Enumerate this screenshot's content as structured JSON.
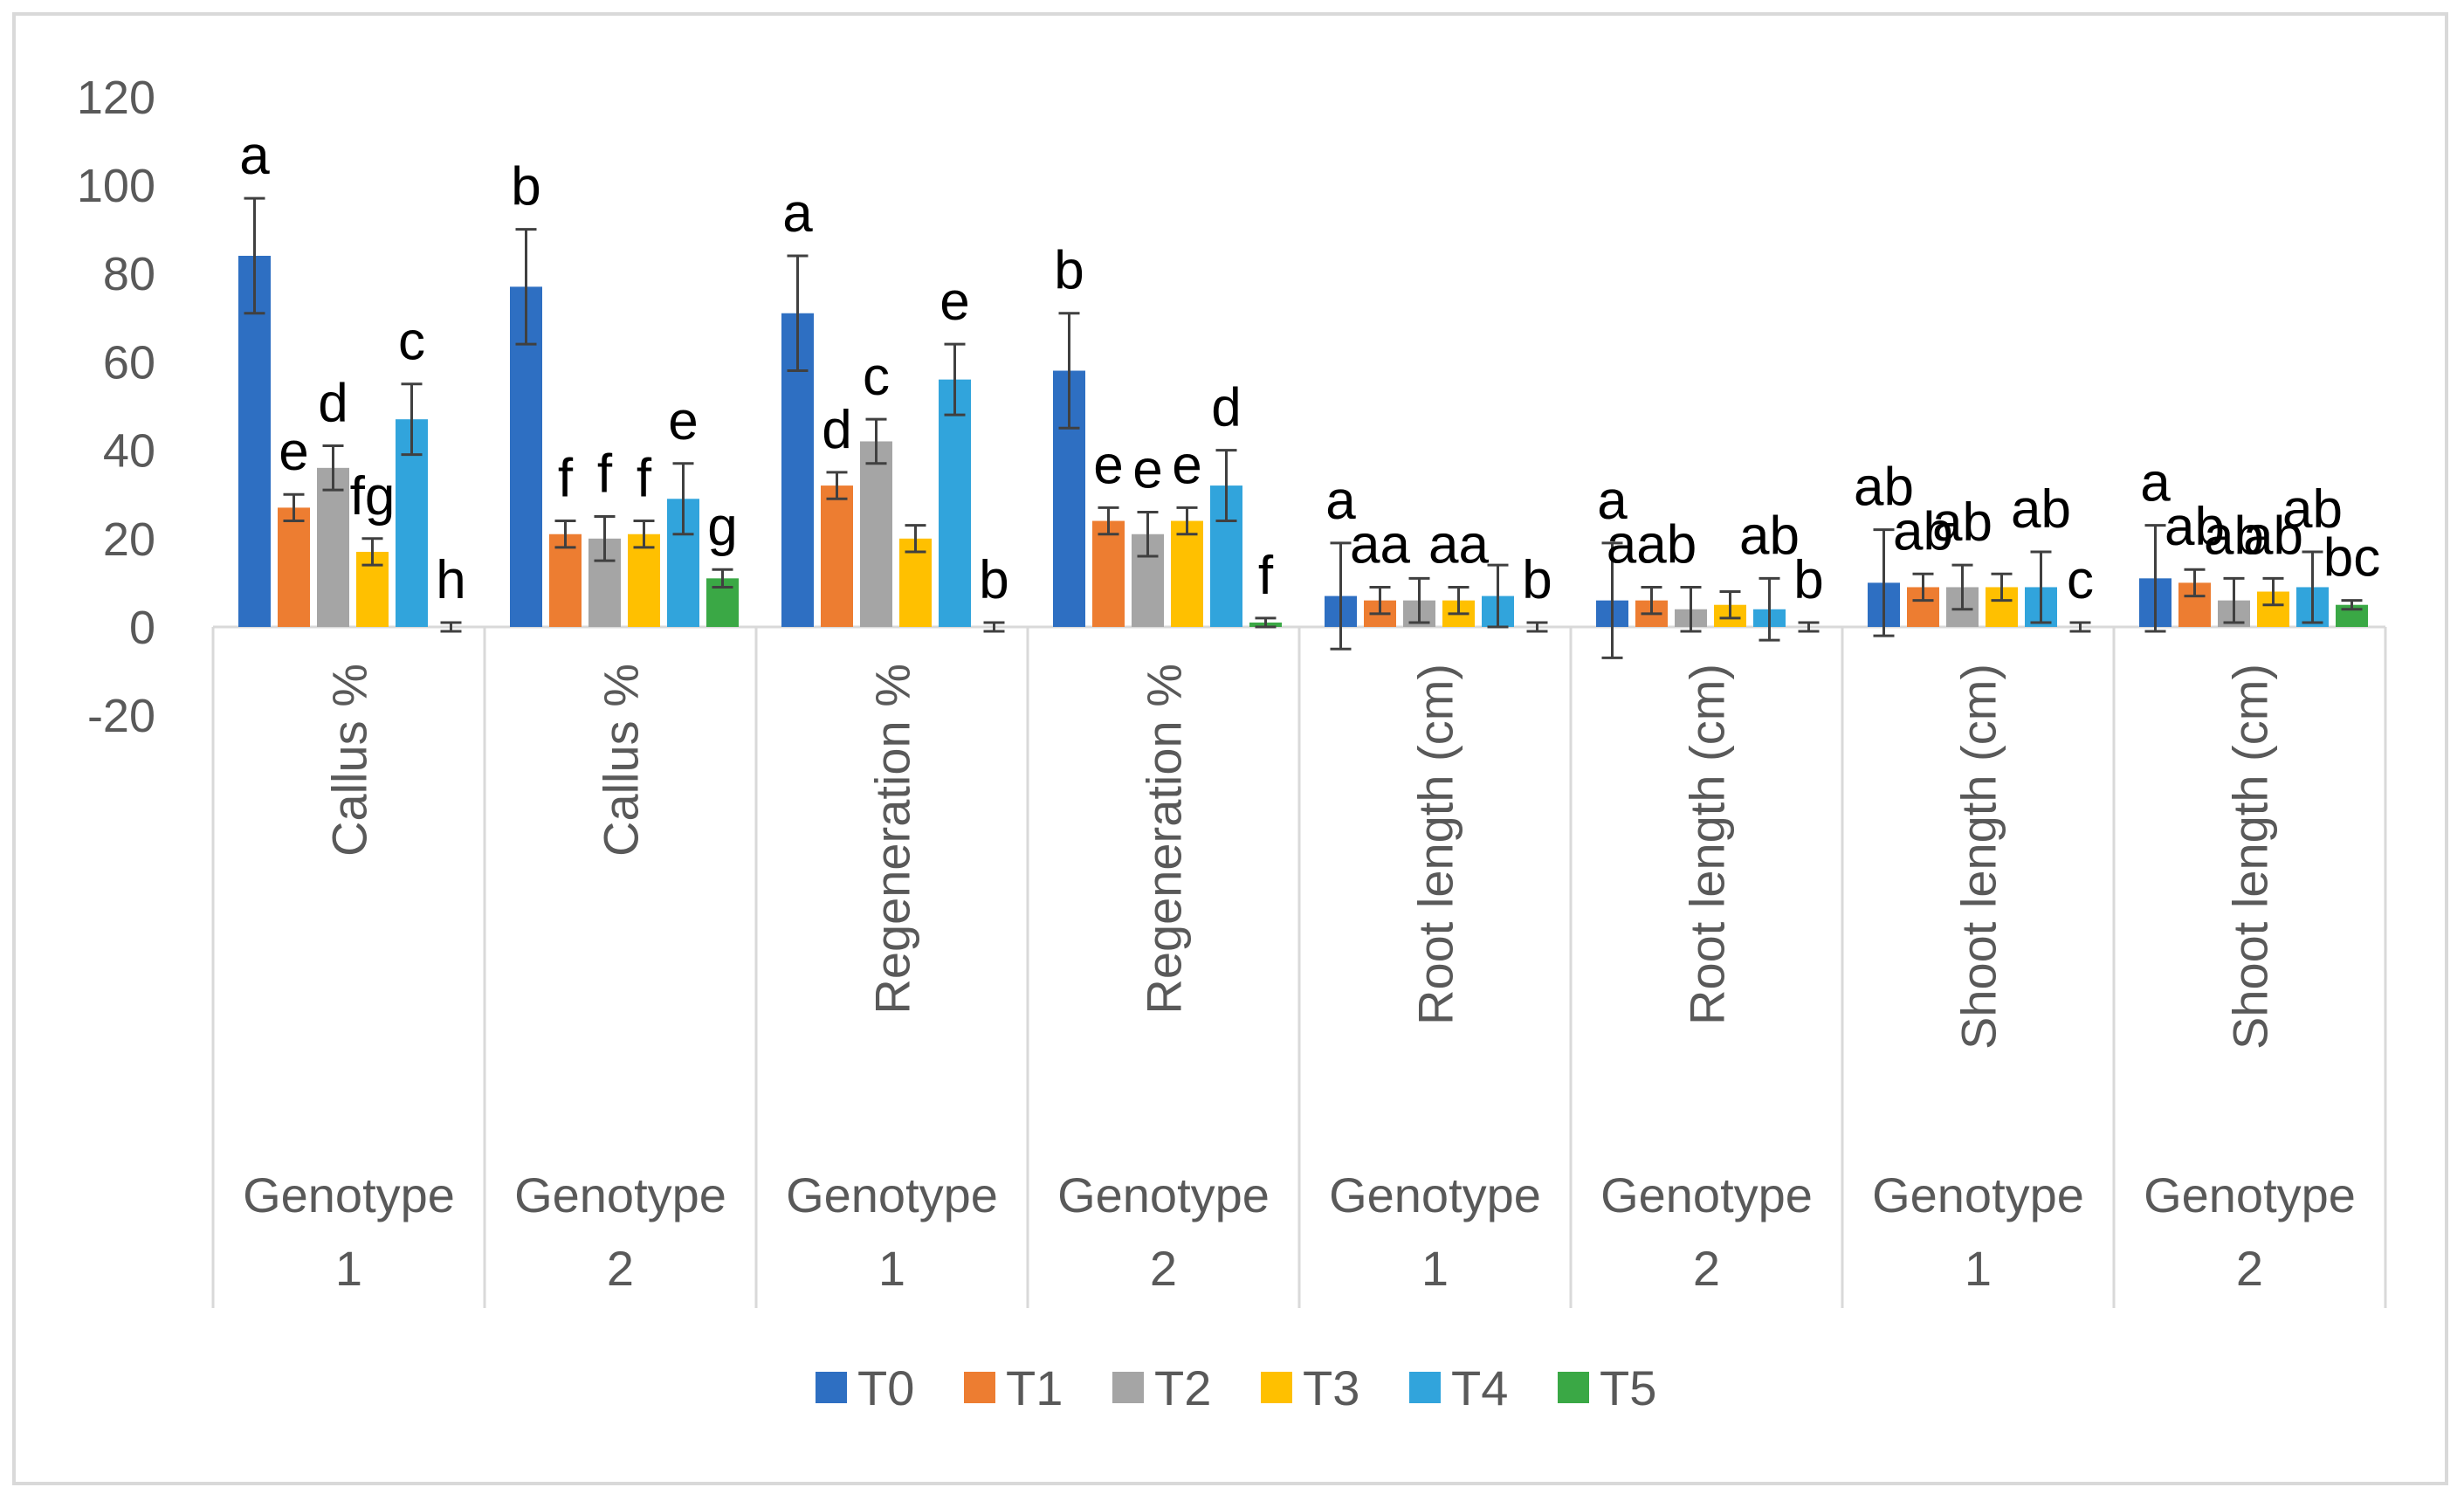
{
  "chart_data": {
    "type": "bar",
    "title": "",
    "xlabel": "",
    "ylabel": "",
    "ylim": [
      -20,
      120
    ],
    "yticks": [
      -20,
      0,
      20,
      40,
      60,
      80,
      100,
      120
    ],
    "grid": false,
    "legend_position": "bottom",
    "categories": [
      {
        "label": "Callus %",
        "group_line1": "Genotype",
        "group_line2": "1"
      },
      {
        "label": "Callus %",
        "group_line1": "Genotype",
        "group_line2": "2"
      },
      {
        "label": "Regeneration %",
        "group_line1": "Genotype",
        "group_line2": "1"
      },
      {
        "label": "Regeneration %",
        "group_line1": "Genotype",
        "group_line2": "2"
      },
      {
        "label": "Root length (cm)",
        "group_line1": "Genotype",
        "group_line2": "1"
      },
      {
        "label": "Root length (cm)",
        "group_line1": "Genotype",
        "group_line2": "2"
      },
      {
        "label": "Shoot length (cm)",
        "group_line1": "Genotype",
        "group_line2": "1"
      },
      {
        "label": "Shoot length (cm)",
        "group_line1": "Genotype",
        "group_line2": "2"
      }
    ],
    "series": [
      {
        "name": "T0",
        "color": "#2e6fc2",
        "values": [
          84,
          77,
          71,
          58,
          7,
          6,
          10,
          11
        ],
        "errors": [
          13,
          13,
          13,
          13,
          12,
          13,
          12,
          12
        ],
        "letters": [
          "a",
          "b",
          "a",
          "b",
          "a",
          "a",
          "ab",
          "a"
        ]
      },
      {
        "name": "T1",
        "color": "#ed7d31",
        "values": [
          27,
          21,
          32,
          24,
          6,
          6,
          9,
          10
        ],
        "errors": [
          3,
          3,
          3,
          3,
          3,
          3,
          3,
          3
        ],
        "letters": [
          "e",
          "f",
          "d",
          "e",
          "aa",
          "aab",
          "ab",
          "ab"
        ]
      },
      {
        "name": "T2",
        "color": "#a5a5a5",
        "values": [
          36,
          20,
          42,
          21,
          6,
          4,
          9,
          6
        ],
        "errors": [
          5,
          5,
          5,
          5,
          5,
          5,
          5,
          5
        ],
        "letters": [
          "d",
          "f",
          "c",
          "e",
          "",
          "",
          "ab",
          "ab"
        ]
      },
      {
        "name": "T3",
        "color": "#ffc000",
        "values": [
          17,
          21,
          20,
          24,
          6,
          5,
          9,
          8
        ],
        "errors": [
          3,
          3,
          3,
          3,
          3,
          3,
          3,
          3
        ],
        "letters": [
          "fg",
          "f",
          "",
          "e",
          "aa",
          "",
          "",
          "ab"
        ]
      },
      {
        "name": "T4",
        "color": "#31a4dc",
        "values": [
          47,
          29,
          56,
          32,
          7,
          4,
          9,
          9
        ],
        "errors": [
          8,
          8,
          8,
          8,
          7,
          7,
          8,
          8
        ],
        "letters": [
          "c",
          "e",
          "e",
          "d",
          "",
          "ab",
          "ab",
          "ab"
        ]
      },
      {
        "name": "T5",
        "color": "#3aa845",
        "values": [
          0,
          11,
          0,
          1,
          0,
          0,
          0,
          5
        ],
        "errors": [
          1,
          2,
          1,
          1,
          1,
          1,
          1,
          1
        ],
        "letters": [
          "h",
          "g",
          "b",
          "f",
          "b",
          "b",
          "c",
          "bc"
        ]
      }
    ]
  }
}
